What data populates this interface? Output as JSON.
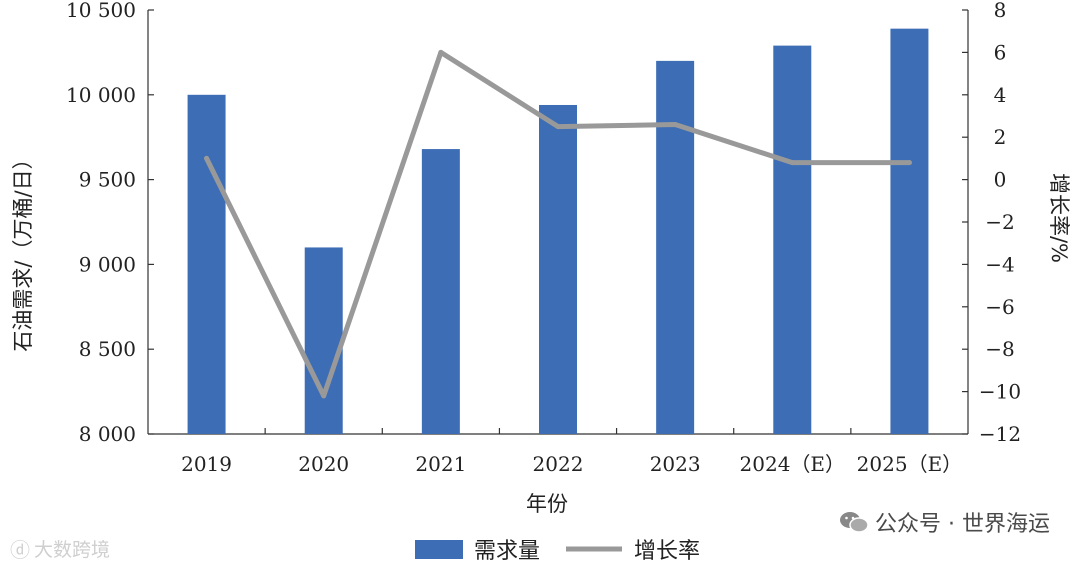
{
  "chart_data": {
    "type": "bar+line",
    "categories": [
      "2019",
      "2020",
      "2021",
      "2022",
      "2023",
      "2024（E）",
      "2025（E）"
    ],
    "series": [
      {
        "name": "需求量",
        "type": "bar",
        "axis": "left",
        "values": [
          10000,
          9100,
          9680,
          9940,
          10200,
          10290,
          10390
        ]
      },
      {
        "name": "增长率",
        "type": "line",
        "axis": "right",
        "values": [
          1.0,
          -10.2,
          6.0,
          2.5,
          2.6,
          0.8,
          0.8
        ]
      }
    ],
    "xlabel": "年份",
    "ylabel": "石油需求/（万桶/日）",
    "y2label": "增长率/%",
    "ylim": [
      8000,
      10500
    ],
    "yticks": [
      8000,
      8500,
      9000,
      9500,
      10000,
      10500
    ],
    "ytick_labels": [
      "8 000",
      "8 500",
      "9 000",
      "9 500",
      "10 000",
      "10 500"
    ],
    "y2lim": [
      -12,
      8
    ],
    "y2ticks": [
      -12,
      -10,
      -8,
      -6,
      -4,
      -2,
      0,
      2,
      4,
      6,
      8
    ],
    "y2tick_labels": [
      "−12",
      "−10",
      "−8",
      "−6",
      "−4",
      "−2",
      "0",
      "2",
      "4",
      "6",
      "8"
    ],
    "legend_position": "bottom",
    "grid": false,
    "colors": {
      "bar": "#3d6db5",
      "line": "#999999",
      "axis": "#333333"
    }
  },
  "watermarks": {
    "right": "公众号 · 世界海运",
    "left": "大数跨境"
  }
}
